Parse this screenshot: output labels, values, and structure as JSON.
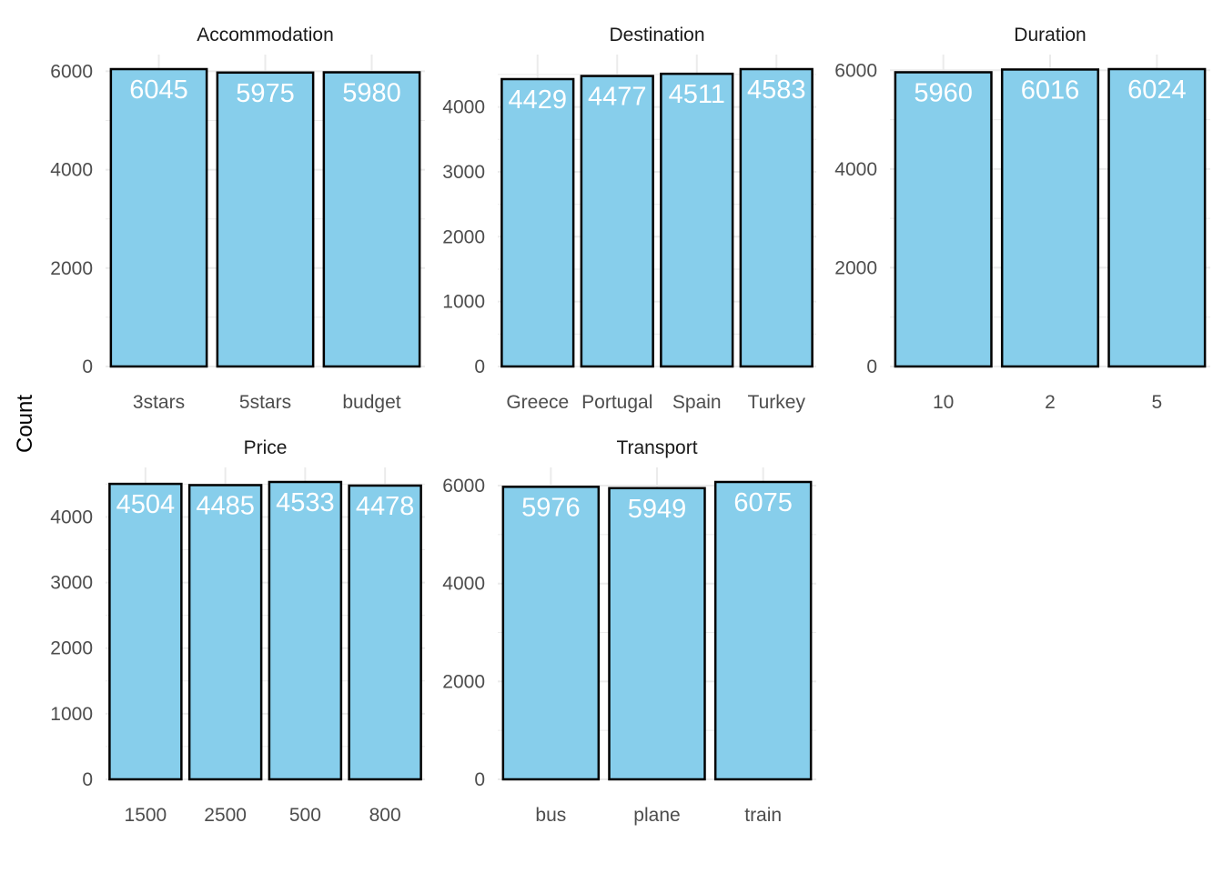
{
  "y_axis_title": "Count",
  "colors": {
    "bar_fill": "#87ceeb",
    "bar_stroke": "#000000",
    "grid": "#ebebeb",
    "label": "#ffffff"
  },
  "chart_data": [
    {
      "type": "bar",
      "title": "Accommodation",
      "categories": [
        "3stars",
        "5stars",
        "budget"
      ],
      "values": [
        6045,
        5975,
        5980
      ],
      "ylim": [
        0,
        6000
      ],
      "yticks": [
        0,
        2000,
        4000,
        6000
      ],
      "xlabel": "",
      "ylabel": "Count",
      "grid": true
    },
    {
      "type": "bar",
      "title": "Destination",
      "categories": [
        "Greece",
        "Portugal",
        "Spain",
        "Turkey"
      ],
      "values": [
        4429,
        4477,
        4511,
        4583
      ],
      "ylim": [
        0,
        4583
      ],
      "yticks": [
        0,
        1000,
        2000,
        3000,
        4000
      ],
      "xlabel": "",
      "ylabel": "Count",
      "grid": true
    },
    {
      "type": "bar",
      "title": "Duration",
      "categories": [
        "10",
        "2",
        "5"
      ],
      "values": [
        5960,
        6016,
        6024
      ],
      "ylim": [
        0,
        6024
      ],
      "yticks": [
        0,
        2000,
        4000,
        6000
      ],
      "xlabel": "",
      "ylabel": "Count",
      "grid": true
    },
    {
      "type": "bar",
      "title": "Price",
      "categories": [
        "1500",
        "2500",
        "500",
        "800"
      ],
      "values": [
        4504,
        4485,
        4533,
        4478
      ],
      "ylim": [
        0,
        4533
      ],
      "yticks": [
        0,
        1000,
        2000,
        3000,
        4000
      ],
      "xlabel": "",
      "ylabel": "Count",
      "grid": true
    },
    {
      "type": "bar",
      "title": "Transport",
      "categories": [
        "bus",
        "plane",
        "train"
      ],
      "values": [
        5976,
        5949,
        6075
      ],
      "ylim": [
        0,
        6075
      ],
      "yticks": [
        0,
        2000,
        4000,
        6000
      ],
      "xlabel": "",
      "ylabel": "Count",
      "grid": true
    }
  ]
}
